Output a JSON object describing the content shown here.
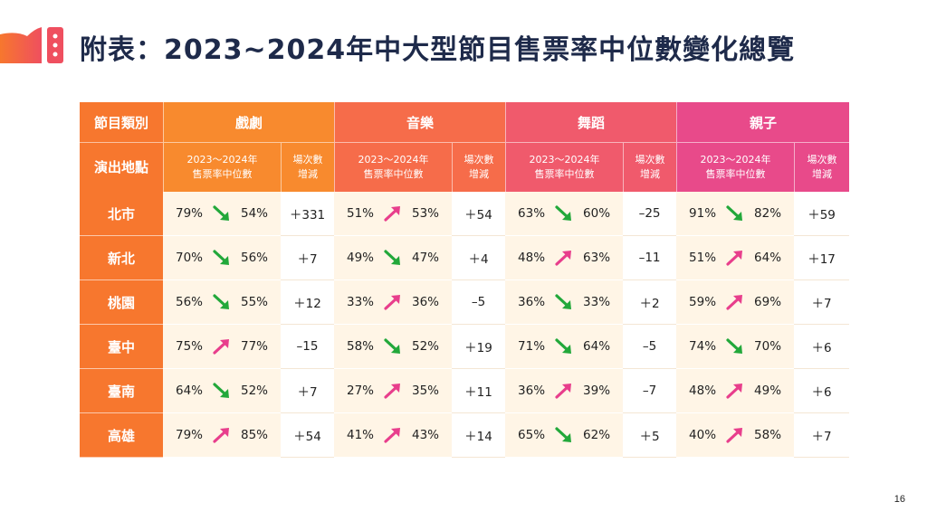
{
  "page": {
    "title": "附表：2023~2024年中大型節目售票率中位數變化總覽",
    "page_number": "16"
  },
  "colors": {
    "up": "#e83e8c",
    "down": "#22a83a",
    "accent_orange": "#f7772e",
    "accent_pink": "#e84a8a"
  },
  "table": {
    "corner_top": "節目類別",
    "corner_bottom": "演出地點",
    "median_label": "2023～2024年\n售票率中位數",
    "delta_label": "場次數\n增減",
    "categories": [
      {
        "label": "戲劇",
        "color": "#f88a2e"
      },
      {
        "label": "音樂",
        "color": "#f66c4a"
      },
      {
        "label": "舞蹈",
        "color": "#f05a6c"
      },
      {
        "label": "親子",
        "color": "#e84a8a"
      }
    ],
    "rows": [
      {
        "city": "北市",
        "cells": [
          {
            "from": "79%",
            "to": "54%",
            "dir": "down",
            "delta": "＋331"
          },
          {
            "from": "51%",
            "to": "53%",
            "dir": "up",
            "delta": "＋54"
          },
          {
            "from": "63%",
            "to": "60%",
            "dir": "down",
            "delta": "–25"
          },
          {
            "from": "91%",
            "to": "82%",
            "dir": "down",
            "delta": "＋59"
          }
        ]
      },
      {
        "city": "新北",
        "cells": [
          {
            "from": "70%",
            "to": "56%",
            "dir": "down",
            "delta": "＋7"
          },
          {
            "from": "49%",
            "to": "47%",
            "dir": "down",
            "delta": "＋4"
          },
          {
            "from": "48%",
            "to": "63%",
            "dir": "up",
            "delta": "–11"
          },
          {
            "from": "51%",
            "to": "64%",
            "dir": "up",
            "delta": "＋17"
          }
        ]
      },
      {
        "city": "桃園",
        "cells": [
          {
            "from": "56%",
            "to": "55%",
            "dir": "down",
            "delta": "＋12"
          },
          {
            "from": "33%",
            "to": "36%",
            "dir": "up",
            "delta": "–5"
          },
          {
            "from": "36%",
            "to": "33%",
            "dir": "down",
            "delta": "＋2"
          },
          {
            "from": "59%",
            "to": "69%",
            "dir": "up",
            "delta": "＋7"
          }
        ]
      },
      {
        "city": "臺中",
        "cells": [
          {
            "from": "75%",
            "to": "77%",
            "dir": "up",
            "delta": "–15"
          },
          {
            "from": "58%",
            "to": "52%",
            "dir": "down",
            "delta": "＋19"
          },
          {
            "from": "71%",
            "to": "64%",
            "dir": "down",
            "delta": "–5"
          },
          {
            "from": "74%",
            "to": "70%",
            "dir": "down",
            "delta": "＋6"
          }
        ]
      },
      {
        "city": "臺南",
        "cells": [
          {
            "from": "64%",
            "to": "52%",
            "dir": "down",
            "delta": "＋7"
          },
          {
            "from": "27%",
            "to": "35%",
            "dir": "up",
            "delta": "＋11"
          },
          {
            "from": "36%",
            "to": "39%",
            "dir": "up",
            "delta": "–7"
          },
          {
            "from": "48%",
            "to": "49%",
            "dir": "up",
            "delta": "＋6"
          }
        ]
      },
      {
        "city": "高雄",
        "cells": [
          {
            "from": "79%",
            "to": "85%",
            "dir": "up",
            "delta": "＋54"
          },
          {
            "from": "41%",
            "to": "43%",
            "dir": "up",
            "delta": "＋14"
          },
          {
            "from": "65%",
            "to": "62%",
            "dir": "down",
            "delta": "＋5"
          },
          {
            "from": "40%",
            "to": "58%",
            "dir": "up",
            "delta": "＋7"
          }
        ]
      }
    ]
  }
}
